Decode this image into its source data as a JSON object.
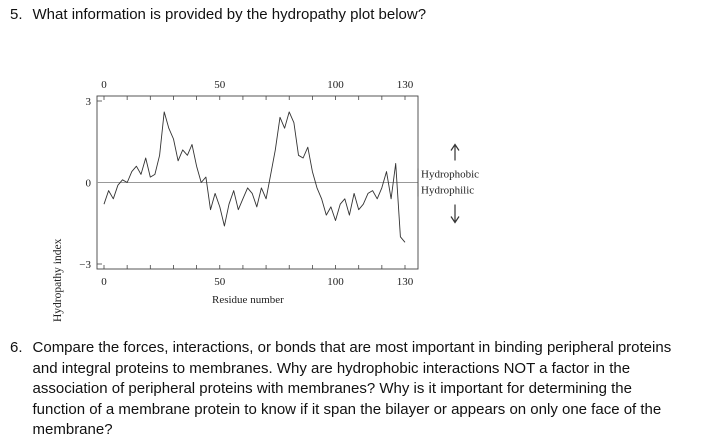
{
  "question5": {
    "number": "5.",
    "text": "What information is provided by the hydropathy plot below?"
  },
  "chart_data": {
    "type": "line",
    "xlabel": "Residue number",
    "ylabel": "Hydropathy index",
    "xlim": [
      0,
      130
    ],
    "ylim": [
      -3,
      3
    ],
    "x_ticks_top": [
      "0",
      "50",
      "100",
      "130"
    ],
    "x_ticks_bottom": [
      "0",
      "50",
      "100",
      "130"
    ],
    "y_ticks": [
      "3",
      "0",
      "−3"
    ],
    "annotations": {
      "up": "Hydrophobic",
      "down": "Hydrophilic"
    },
    "reference_line_y": 0,
    "grid": false,
    "series": [
      {
        "x": [
          0,
          2,
          4,
          6,
          8,
          10,
          12,
          14,
          16,
          18,
          20,
          22,
          24,
          26,
          28,
          30,
          32,
          34,
          36,
          38,
          40,
          42,
          44,
          46,
          48,
          50,
          52,
          54,
          56,
          58,
          60,
          62,
          64,
          66,
          68,
          70,
          72,
          74,
          76,
          78,
          80,
          82,
          84,
          86,
          88,
          90,
          92,
          94,
          96,
          98,
          100,
          102,
          104,
          106,
          108,
          110,
          112,
          114,
          116,
          118,
          120,
          122,
          124,
          126,
          128,
          130
        ],
        "y": [
          -0.8,
          -0.3,
          -0.6,
          -0.1,
          0.1,
          0.0,
          0.4,
          0.6,
          0.3,
          0.9,
          0.2,
          0.3,
          1.0,
          2.6,
          2.0,
          1.6,
          0.8,
          1.2,
          1.0,
          1.4,
          0.6,
          0.0,
          0.2,
          -1.0,
          -0.4,
          -0.9,
          -1.6,
          -0.8,
          -0.3,
          -1.0,
          -0.6,
          -0.2,
          -0.4,
          -0.9,
          -0.2,
          -0.6,
          0.3,
          1.2,
          2.4,
          2.0,
          2.6,
          2.2,
          1.0,
          0.9,
          1.3,
          0.4,
          -0.2,
          -0.6,
          -1.2,
          -0.9,
          -1.4,
          -0.8,
          -0.6,
          -1.2,
          -0.4,
          -1.0,
          -0.8,
          -0.4,
          -0.3,
          -0.6,
          -0.2,
          0.4,
          -0.6,
          0.7,
          -2.0,
          -2.2
        ]
      }
    ]
  },
  "question6": {
    "number": "6.",
    "text": "Compare the forces, interactions, or bonds that are most important in binding peripheral proteins and integral proteins to membranes. Why are hydrophobic interactions NOT a factor in the association of peripheral proteins with membranes? Why is it important for determining the function of a membrane protein to know if it span the bilayer or appears on only one face of the membrane?"
  }
}
